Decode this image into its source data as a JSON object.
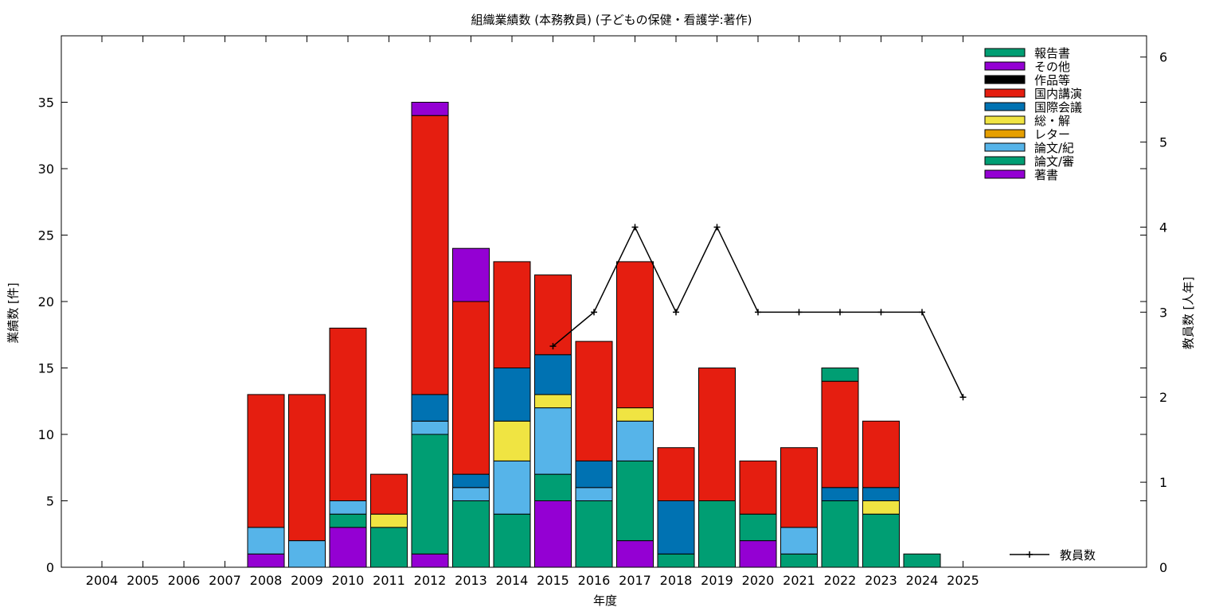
{
  "chart_data": {
    "type": "bar",
    "stacked": true,
    "title": "組織業績数 (本務教員) (子どもの保健・看護学:著作)",
    "xlabel": "年度",
    "ylabel": "業績数 [件]",
    "y2label": "教員数 [人年]",
    "categories": [
      "2004",
      "2005",
      "2006",
      "2007",
      "2008",
      "2009",
      "2010",
      "2011",
      "2012",
      "2013",
      "2014",
      "2015",
      "2016",
      "2017",
      "2018",
      "2019",
      "2020",
      "2021",
      "2022",
      "2023",
      "2024",
      "2025"
    ],
    "ylim": [
      0,
      40
    ],
    "yticks": [
      0,
      5,
      10,
      15,
      20,
      25,
      30,
      35
    ],
    "y2lim": [
      0,
      6.25
    ],
    "y2ticks": [
      0,
      1,
      2,
      3,
      4,
      5,
      6
    ],
    "grid": false,
    "legend_position": "top-right",
    "series": [
      {
        "name": "著書",
        "color": "#9400d3",
        "values": [
          0,
          0,
          0,
          0,
          1,
          0,
          3,
          0,
          1,
          0,
          0,
          5,
          0,
          2,
          0,
          0,
          2,
          0,
          0,
          0,
          0,
          0
        ]
      },
      {
        "name": "論文/審",
        "color": "#009e73",
        "values": [
          0,
          0,
          0,
          0,
          0,
          0,
          1,
          3,
          9,
          5,
          4,
          2,
          5,
          6,
          1,
          5,
          2,
          1,
          5,
          4,
          1,
          0
        ]
      },
      {
        "name": "論文/紀",
        "color": "#56b4e9",
        "values": [
          0,
          0,
          0,
          0,
          2,
          2,
          1,
          0,
          1,
          1,
          4,
          5,
          1,
          3,
          0,
          0,
          0,
          2,
          0,
          0,
          0,
          0
        ]
      },
      {
        "name": "レター",
        "color": "#e69f00",
        "values": [
          0,
          0,
          0,
          0,
          0,
          0,
          0,
          0,
          0,
          0,
          0,
          0,
          0,
          0,
          0,
          0,
          0,
          0,
          0,
          0,
          0,
          0
        ]
      },
      {
        "name": "総・解",
        "color": "#f0e442",
        "values": [
          0,
          0,
          0,
          0,
          0,
          0,
          0,
          1,
          0,
          0,
          3,
          1,
          0,
          1,
          0,
          0,
          0,
          0,
          0,
          1,
          0,
          0
        ]
      },
      {
        "name": "国際会議",
        "color": "#0072b2",
        "values": [
          0,
          0,
          0,
          0,
          0,
          0,
          0,
          0,
          2,
          1,
          4,
          3,
          2,
          0,
          4,
          0,
          0,
          0,
          1,
          1,
          0,
          0
        ]
      },
      {
        "name": "国内講演",
        "color": "#e51e10",
        "values": [
          0,
          0,
          0,
          0,
          10,
          11,
          13,
          3,
          21,
          13,
          8,
          6,
          9,
          11,
          4,
          10,
          4,
          6,
          8,
          5,
          0,
          0
        ]
      },
      {
        "name": "作品等",
        "color": "#000000",
        "values": [
          0,
          0,
          0,
          0,
          0,
          0,
          0,
          0,
          0,
          0,
          0,
          0,
          0,
          0,
          0,
          0,
          0,
          0,
          0,
          0,
          0,
          0
        ]
      },
      {
        "name": "その他",
        "color": "#9400d3",
        "values": [
          0,
          0,
          0,
          0,
          0,
          0,
          0,
          0,
          1,
          4,
          0,
          0,
          0,
          0,
          0,
          0,
          0,
          0,
          0,
          0,
          0,
          0
        ]
      },
      {
        "name": "報告書",
        "color": "#009e73",
        "values": [
          0,
          0,
          0,
          0,
          0,
          0,
          0,
          0,
          0,
          0,
          0,
          0,
          0,
          0,
          0,
          0,
          0,
          0,
          1,
          0,
          0,
          0
        ]
      }
    ],
    "line_series": {
      "name": "教員数",
      "axis": "y2",
      "color": "#000000",
      "x": [
        "2015",
        "2016",
        "2017",
        "2018",
        "2019",
        "2020",
        "2021",
        "2022",
        "2023",
        "2024",
        "2025"
      ],
      "values": [
        2.6,
        3,
        4,
        3,
        4,
        3,
        3,
        3,
        3,
        3,
        2
      ]
    }
  }
}
